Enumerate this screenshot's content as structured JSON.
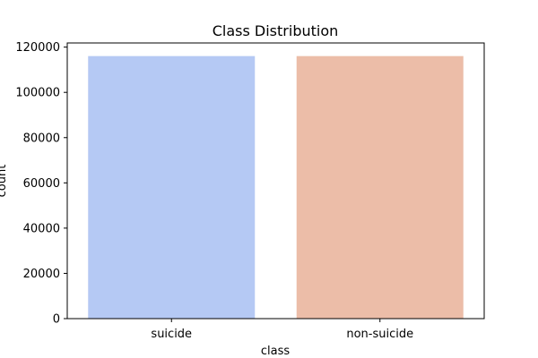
{
  "chart_data": {
    "type": "bar",
    "title": "Class Distribution",
    "xlabel": "class",
    "ylabel": "count",
    "categories": [
      "suicide",
      "non-suicide"
    ],
    "values": [
      116037,
      116037
    ],
    "bar_colors": [
      "#b5c9f4",
      "#ecbda8"
    ],
    "ylim": [
      0,
      121839
    ],
    "yticks": [
      0,
      20000,
      40000,
      60000,
      80000,
      100000,
      120000
    ],
    "grid": false,
    "legend": "none"
  }
}
